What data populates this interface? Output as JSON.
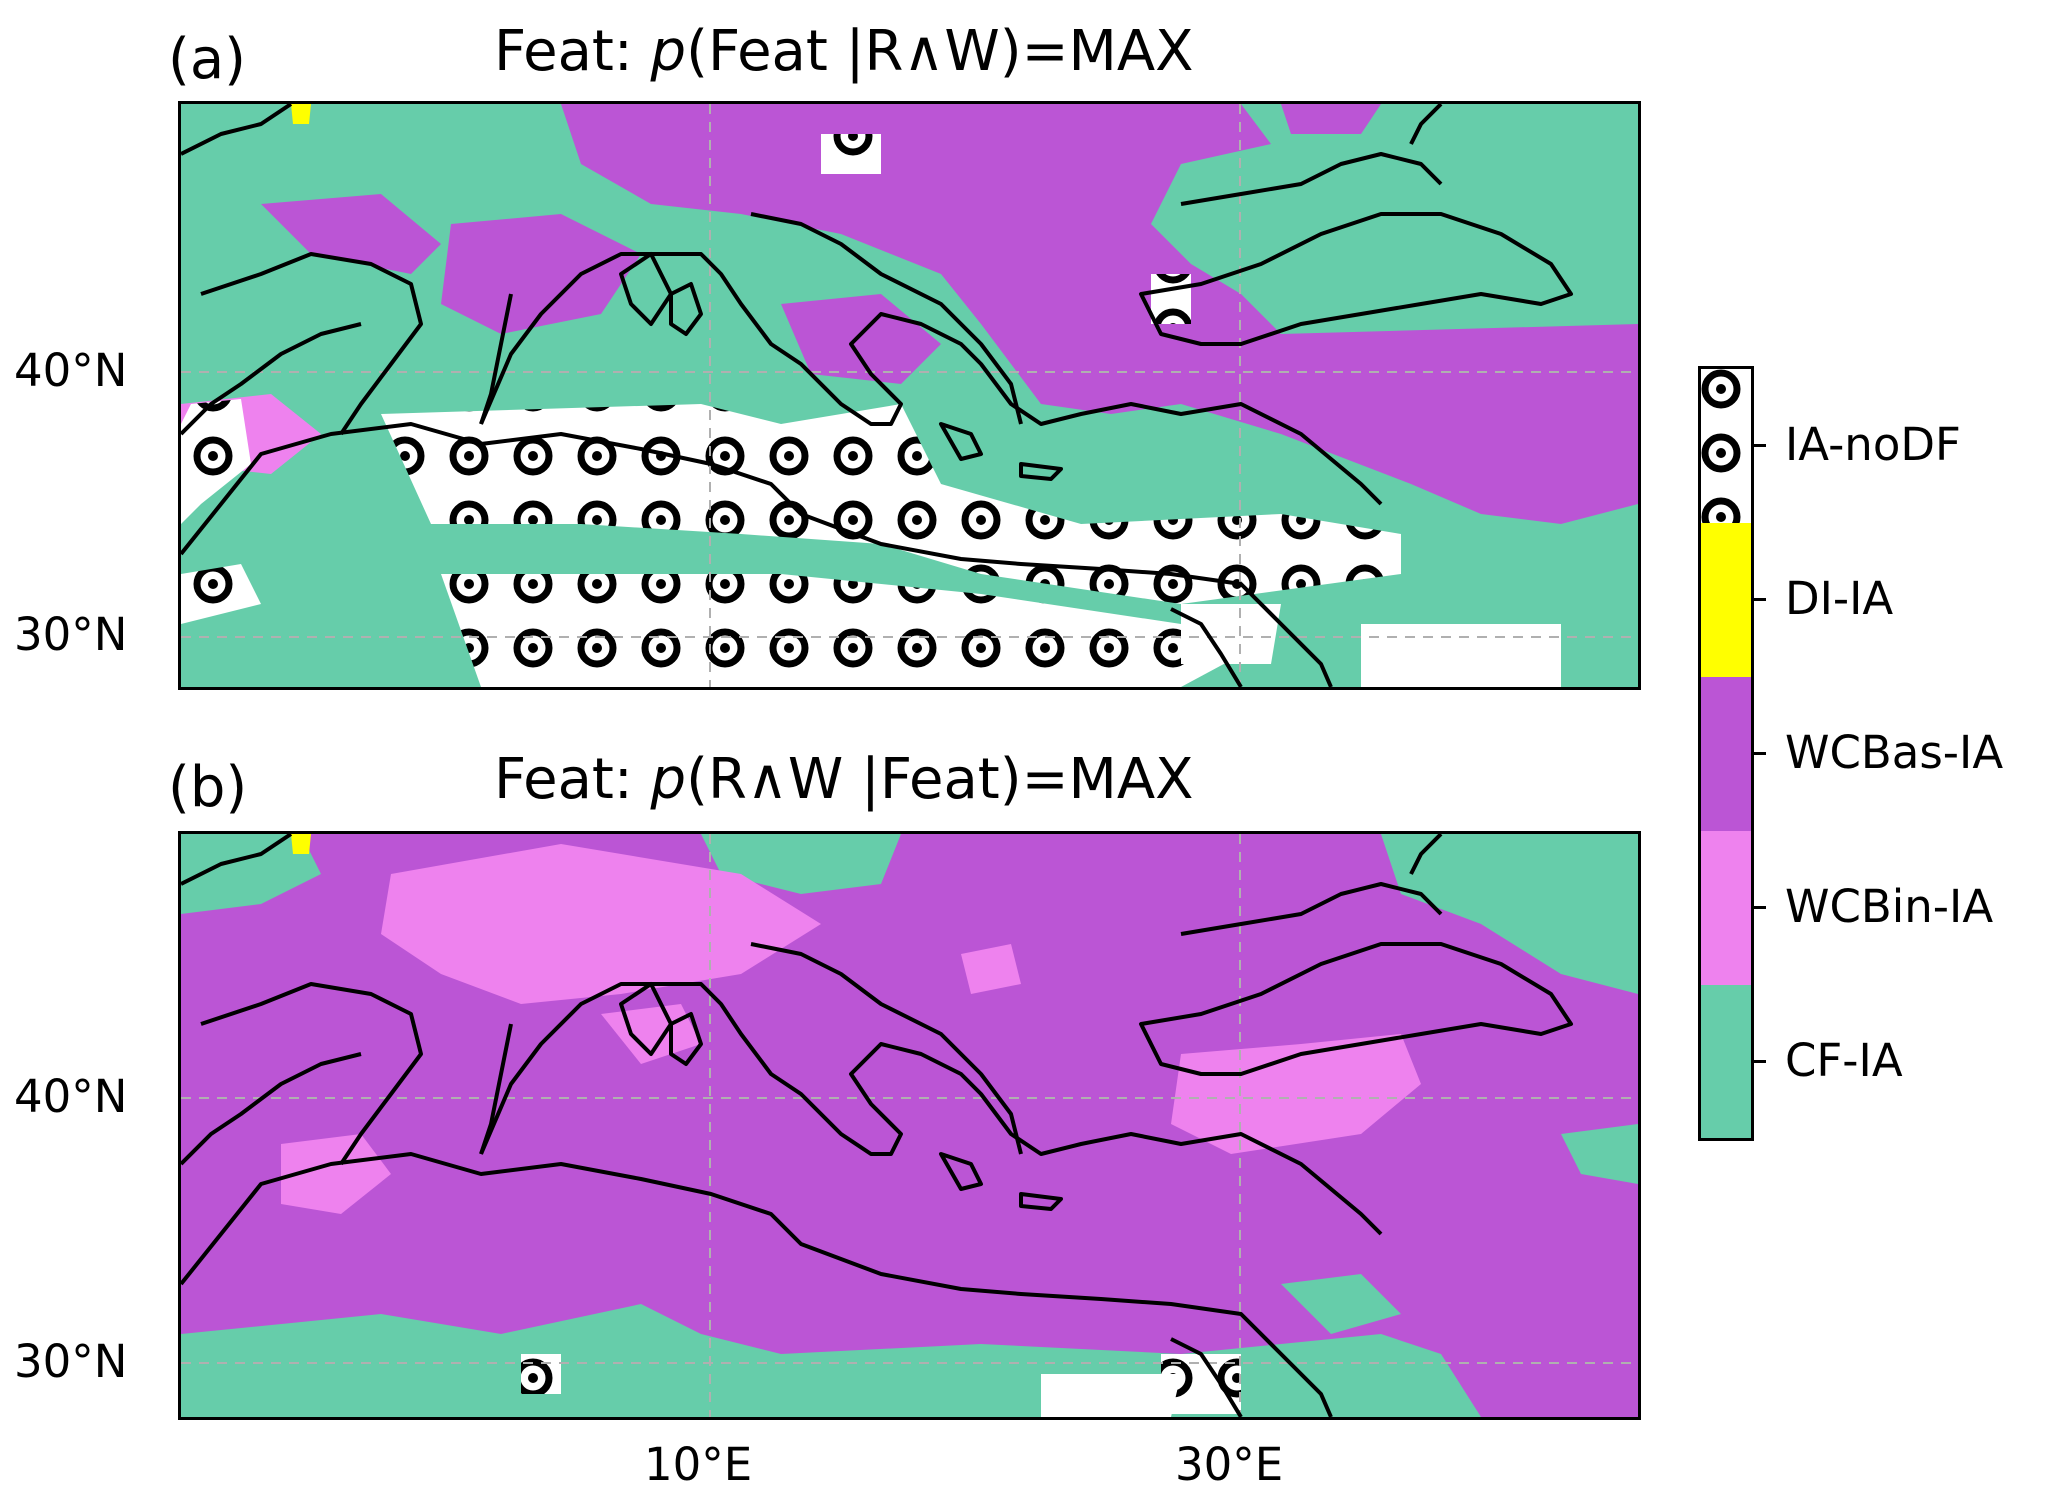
{
  "panels": [
    {
      "label": "(a)",
      "title_prefix": "Feat: ",
      "title_p": "p",
      "title_suffix": "(Feat |R∧W)=MAX"
    },
    {
      "label": "(b)",
      "title_prefix": "Feat: ",
      "title_p": "p",
      "title_suffix": "(R∧W |Feat)=MAX"
    }
  ],
  "axes": {
    "lat_ticks": [
      "40°N",
      "30°N"
    ],
    "lon_ticks": [
      "10°E",
      "30°E"
    ]
  },
  "colorbar": {
    "categories": [
      {
        "label": "IA-noDF",
        "color": "#ffffff",
        "pattern": "circle-dot-hatch"
      },
      {
        "label": "DI-IA",
        "color": "#ffff00"
      },
      {
        "label": "WCBas-IA",
        "color": "#bb55d5"
      },
      {
        "label": "WCBin-IA",
        "color": "#ee82ee"
      },
      {
        "label": "CF-IA",
        "color": "#66cdaa"
      }
    ]
  }
}
